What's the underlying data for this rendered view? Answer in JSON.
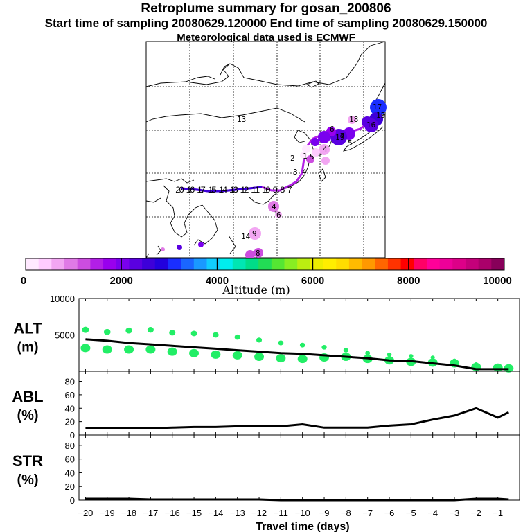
{
  "header": {
    "title": "Retroplume summary for gosan_200806",
    "sampling_line": "Start time of sampling 20080629.120000     End time of sampling 20080629.150000",
    "met_line": "Meteorological data used is ECMWF"
  },
  "colors": {
    "colorbar": [
      "#ffe9ff",
      "#ffccff",
      "#f2a6f2",
      "#e07ae6",
      "#cc4ddf",
      "#b21fe6",
      "#9900ee",
      "#7a00ee",
      "#5a00e0",
      "#3d00d9",
      "#2200dd",
      "#1a2eff",
      "#1a66ff",
      "#1a99ff",
      "#11ccff",
      "#00eeee",
      "#00e6b3",
      "#00dd88",
      "#22dd55",
      "#55e633",
      "#88ee22",
      "#bbee11",
      "#eeee00",
      "#ffee00",
      "#ffdd00",
      "#ffbb00",
      "#ff9900",
      "#ff6600",
      "#ff3300",
      "#ff0000",
      "#ff0066",
      "#ff0099",
      "#ee0099",
      "#dd0088",
      "#c4007a",
      "#aa006a",
      "#88005a"
    ],
    "scatter": "#22ee66",
    "line": "#000000"
  },
  "chart_data": [
    {
      "type": "map",
      "name": "retroplume trajectory map",
      "colorbar": {
        "label": "Altitude (m)",
        "ticks": [
          "0",
          "2000",
          "4000",
          "6000",
          "8000",
          "10000"
        ],
        "range": [
          0,
          10000
        ]
      },
      "day_labels": [
        {
          "text": "17",
          "alt": 2500
        },
        {
          "text": "15",
          "alt": 2800
        },
        {
          "text": "16",
          "alt": 2200
        },
        {
          "text": "18",
          "alt": 2100
        },
        {
          "text": "19",
          "alt": 1900
        },
        {
          "text": "6",
          "alt": 300
        },
        {
          "text": "5",
          "alt": 1600
        },
        {
          "text": "7",
          "alt": 1800
        },
        {
          "text": "4",
          "alt": 800
        },
        {
          "text": "1",
          "alt": 300
        },
        {
          "text": "2",
          "alt": 150
        },
        {
          "text": "3",
          "alt": 1000
        },
        {
          "text": "4",
          "alt": 1100
        },
        {
          "text": "5",
          "alt": 1300
        },
        {
          "text": "4",
          "alt": 800
        },
        {
          "text": "6",
          "alt": 600
        },
        {
          "text": "9",
          "alt": 0
        },
        {
          "text": "8",
          "alt": 0
        },
        {
          "text": "14",
          "alt": 4500
        },
        {
          "text": "13",
          "alt": 4500
        }
      ],
      "path_labels": "20 16 17 15 14 13 12 11 10 9 8 7"
    },
    {
      "type": "scatter+line",
      "name": "ALT",
      "ylabel": "ALT",
      "yunit": "(m)",
      "ylim": [
        0,
        10000
      ],
      "yticks": [
        5000,
        10000
      ],
      "x": [
        -20,
        -19,
        -18,
        -17,
        -16,
        -15,
        -14,
        -13,
        -12,
        -11,
        -10,
        -9,
        -8,
        -7,
        -6,
        -5,
        -4,
        -3,
        -2,
        -1,
        -0.5
      ],
      "line": [
        4400,
        4200,
        3900,
        3700,
        3500,
        3300,
        3100,
        2900,
        2700,
        2500,
        2400,
        2200,
        2000,
        1800,
        1500,
        1400,
        1100,
        800,
        300,
        300,
        300
      ],
      "high_points": [
        5700,
        5400,
        5600,
        5700,
        5300,
        5200,
        5000,
        4700,
        4300,
        3900,
        3600,
        3300,
        2900,
        2500,
        2300,
        2100,
        1900,
        1500,
        1000,
        800,
        600
      ],
      "low_points": [
        3200,
        3000,
        3000,
        3000,
        2700,
        2500,
        2300,
        2200,
        2000,
        1800,
        1700,
        1900,
        2000,
        1700,
        1500,
        1300,
        1200,
        1100,
        600,
        500,
        400
      ]
    },
    {
      "type": "line",
      "name": "ABL",
      "ylabel": "ABL",
      "yunit": "(%)",
      "ylim": [
        0,
        95
      ],
      "yticks": [
        0,
        20,
        40,
        60,
        80
      ],
      "x": [
        -20,
        -19,
        -18,
        -17,
        -16,
        -15,
        -14,
        -13,
        -12,
        -11,
        -10,
        -9,
        -8,
        -7,
        -6,
        -5,
        -4,
        -3,
        -2,
        -1,
        -0.5
      ],
      "values": [
        10,
        10,
        10,
        10,
        11,
        12,
        12,
        13,
        13,
        13,
        16,
        11,
        11,
        11,
        14,
        16,
        23,
        29,
        40,
        26,
        34
      ]
    },
    {
      "type": "line",
      "name": "STR",
      "ylabel": "STR",
      "yunit": "(%)",
      "ylim": [
        0,
        95
      ],
      "yticks": [
        0,
        20,
        40,
        60,
        80
      ],
      "x": [
        -20,
        -19,
        -18,
        -17,
        -16,
        -15,
        -14,
        -13,
        -12,
        -11,
        -10,
        -9,
        -8,
        -7,
        -6,
        -5,
        -4,
        -3,
        -2,
        -1,
        -0.5
      ],
      "values": [
        2,
        2,
        2,
        1,
        1,
        1,
        1,
        1,
        1,
        0,
        0,
        0,
        0,
        0,
        0,
        0,
        0,
        0,
        2,
        2,
        1
      ]
    }
  ],
  "xaxis": {
    "label": "Travel time (days)",
    "ticks": [
      "−20",
      "−19",
      "−18",
      "−17",
      "−16",
      "−15",
      "−14",
      "−13",
      "−12",
      "−11",
      "−10",
      "−9",
      "−8",
      "−7",
      "−6",
      "−5",
      "−4",
      "−3",
      "−2",
      "−1"
    ]
  }
}
